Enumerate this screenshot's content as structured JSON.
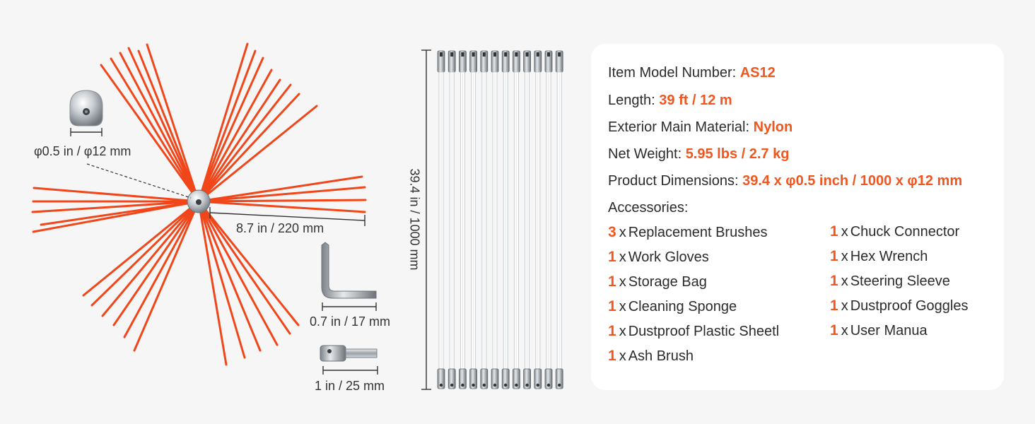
{
  "colors": {
    "accent": "#f0561e",
    "bristle": "#f0461a",
    "card_bg": "#ffffff",
    "page_bg": "#f6f6f6"
  },
  "dimensions": {
    "ball_diameter": "φ0.5 in / φ12 mm",
    "brush_radius": "8.7 in / 220 mm",
    "hex_wrench": "0.7 in / 17 mm",
    "chuck_connector": "1 in / 25 mm",
    "rod_length": "39.4 in / 1000 mm"
  },
  "rods": {
    "count": 12
  },
  "specs": [
    {
      "label": "Item Model Number:",
      "value": "AS12"
    },
    {
      "label": "Length:",
      "value": "39 ft / 12 m"
    },
    {
      "label": "Exterior Main Material:",
      "value": "Nylon"
    },
    {
      "label": "Net Weight:",
      "value": "5.95 lbs / 2.7 kg"
    },
    {
      "label": "Product Dimensions:",
      "value": "39.4 x φ0.5 inch / 1000 x φ12 mm"
    }
  ],
  "accessories": {
    "title": "Accessories:",
    "separator": "x",
    "left": [
      {
        "qty": "3",
        "name": "Replacement Brushes"
      },
      {
        "qty": "1",
        "name": "Work Gloves"
      },
      {
        "qty": "1",
        "name": "Storage Bag"
      },
      {
        "qty": "1",
        "name": "Cleaning Sponge"
      },
      {
        "qty": "1",
        "name": "Dustproof Plastic Sheetl"
      },
      {
        "qty": "1",
        "name": "Ash Brush"
      }
    ],
    "right": [
      {
        "qty": "1",
        "name": "Chuck Connector"
      },
      {
        "qty": "1",
        "name": "Hex Wrench"
      },
      {
        "qty": "1",
        "name": "Steering Sleeve"
      },
      {
        "qty": "1",
        "name": "Dustproof Goggles"
      },
      {
        "qty": "1",
        "name": "User Manua"
      }
    ]
  }
}
